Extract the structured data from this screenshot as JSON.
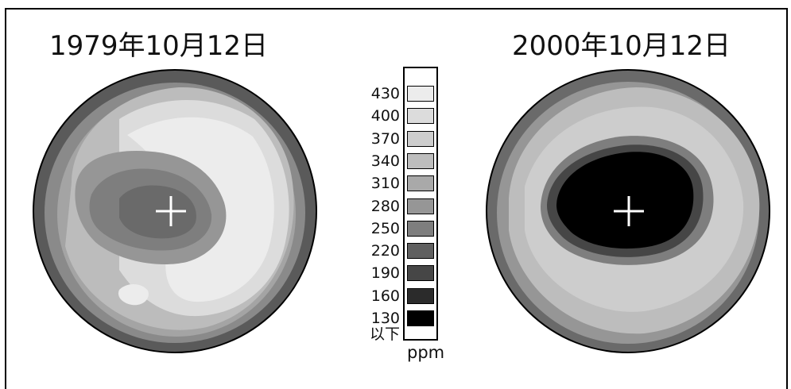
{
  "maps": [
    {
      "title": "1979年10月12日"
    },
    {
      "title": "2000年10月12日"
    }
  ],
  "legend": {
    "levels": [
      {
        "label": "430",
        "color": "#ececec"
      },
      {
        "label": "400",
        "color": "#dcdcdc"
      },
      {
        "label": "370",
        "color": "#cdcdcd"
      },
      {
        "label": "340",
        "color": "#bdbdbd"
      },
      {
        "label": "310",
        "color": "#a9a9a9"
      },
      {
        "label": "280",
        "color": "#969696"
      },
      {
        "label": "250",
        "color": "#7e7e7e"
      },
      {
        "label": "220",
        "color": "#5f5f5f"
      },
      {
        "label": "190",
        "color": "#464646"
      },
      {
        "label": "160",
        "color": "#2b2b2b"
      },
      {
        "label": "130",
        "color": "#000000"
      }
    ],
    "below_label": "以下",
    "unit": "ppm"
  }
}
